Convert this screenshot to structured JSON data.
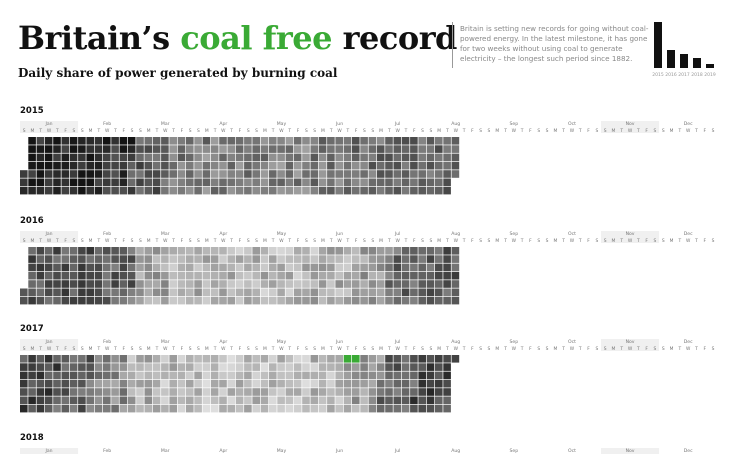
{
  "header": {
    "title_pre": "Britain’s ",
    "title_green": "coal free",
    "title_post": " record",
    "subtitle": "Daily share of power generated by burning coal",
    "blurb": "Britain is setting new records for going without coal-powered energy. In the latest milestone, it has gone for two weeks without using coal to generate electricity – the longest such period since 1882."
  },
  "colors": {
    "accent_green": "#3aaa35",
    "dark": "#141414",
    "light": "#dcdcdc",
    "month_band": "#f0f0f0"
  },
  "chart_data": [
    {
      "type": "bar",
      "categories": [
        "2015",
        "2016",
        "2017",
        "2018",
        "2019"
      ],
      "values": [
        23,
        9,
        7,
        5,
        2
      ],
      "ylim": [
        0,
        25
      ],
      "note": "small annual summary bars, values in approximate % share of coal"
    },
    {
      "type": "heatmap",
      "calendar_years": [
        "2015",
        "2016",
        "2017",
        "2018"
      ],
      "month_labels": [
        "Jan",
        "Feb",
        "Mar",
        "Apr",
        "May",
        "Jun",
        "Jul",
        "Aug",
        "Sep",
        "Oct",
        "Nov",
        "Dec"
      ],
      "weekday_labels": [
        "S",
        "M",
        "T",
        "W",
        "T",
        "F",
        "S"
      ],
      "value_range": [
        0,
        1
      ],
      "value_meaning": "intensity of daily coal share (0 = no coal, 1 = highest share)",
      "first_weekday_offset": [
        4,
        5,
        0,
        1
      ],
      "year_days": [
        365,
        366,
        365,
        0
      ],
      "monthly_level": {
        "2015": [
          0.92,
          0.92,
          0.84,
          0.66,
          0.5,
          0.46,
          0.48,
          0.46,
          0.5,
          0.56,
          0.58,
          0.6
        ],
        "2016": [
          0.68,
          0.7,
          0.62,
          0.3,
          0.24,
          0.2,
          0.2,
          0.2,
          0.24,
          0.34,
          0.58,
          0.64
        ],
        "2017": [
          0.74,
          0.62,
          0.42,
          0.24,
          0.18,
          0.14,
          0.16,
          0.14,
          0.18,
          0.32,
          0.62,
          0.76
        ]
      },
      "zero_coal_days": [
        {
          "year": "2017",
          "month": "Oct",
          "day": 1
        },
        {
          "year": "2017",
          "month": "Oct",
          "day": 8
        }
      ]
    }
  ]
}
